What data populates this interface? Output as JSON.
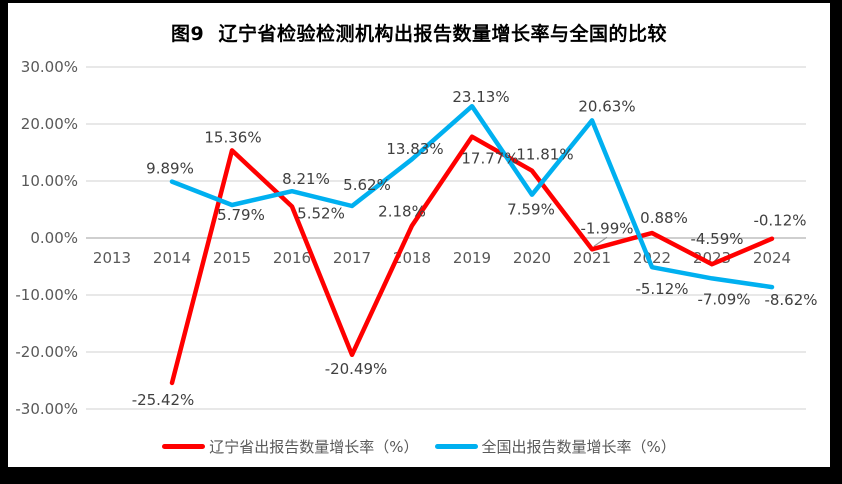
{
  "chart_data": {
    "type": "line",
    "title": "图9  辽宁省检验检测机构出报告数量增长率与全国的比较",
    "categories": [
      "2013",
      "2014",
      "2015",
      "2016",
      "2017",
      "2018",
      "2019",
      "2020",
      "2021",
      "2022",
      "2023",
      "2024"
    ],
    "series": [
      {
        "name": "辽宁省出报告数量增长率（%）",
        "color": "#FF0000",
        "values": [
          null,
          -25.42,
          15.36,
          5.52,
          -20.49,
          2.18,
          17.77,
          11.81,
          -1.99,
          0.88,
          -4.59,
          -0.12
        ]
      },
      {
        "name": "全国出报告数量增长率（%）",
        "color": "#00B0F0",
        "values": [
          null,
          9.89,
          5.79,
          8.21,
          5.62,
          13.83,
          23.13,
          7.59,
          20.63,
          -5.12,
          -7.09,
          -8.62
        ]
      }
    ],
    "y_axis": {
      "ticks": [
        30,
        20,
        10,
        0,
        -10,
        -20,
        -30
      ],
      "min": -30,
      "max": 30,
      "tick_format": "0.00%"
    },
    "grid": true,
    "data_labels": true,
    "legend_position": "bottom",
    "label_offsets": [
      [
        null,
        [
          -9,
          17
        ],
        [
          1,
          -13
        ],
        [
          29,
          7
        ],
        [
          4,
          14
        ],
        [
          -10,
          -14
        ],
        [
          18,
          22
        ],
        [
          13,
          -16
        ],
        [
          15,
          -21
        ],
        [
          12,
          -15
        ],
        [
          5,
          -25
        ],
        [
          8,
          -18
        ]
      ],
      [
        null,
        [
          -2,
          -13
        ],
        [
          9,
          10
        ],
        [
          14,
          -12
        ],
        [
          15,
          -21
        ],
        [
          3,
          -10
        ],
        [
          9,
          -9
        ],
        [
          -1,
          15
        ],
        [
          15,
          -14
        ],
        [
          10,
          22
        ],
        [
          12,
          21
        ],
        [
          19,
          13
        ]
      ]
    ],
    "colors": {
      "grid": "#D9D9D9",
      "zero_line": "#BFBFBF",
      "axis_text": "#595959",
      "label_text": "#404040",
      "background": "#FFFFFF",
      "frame": "#000000"
    }
  }
}
